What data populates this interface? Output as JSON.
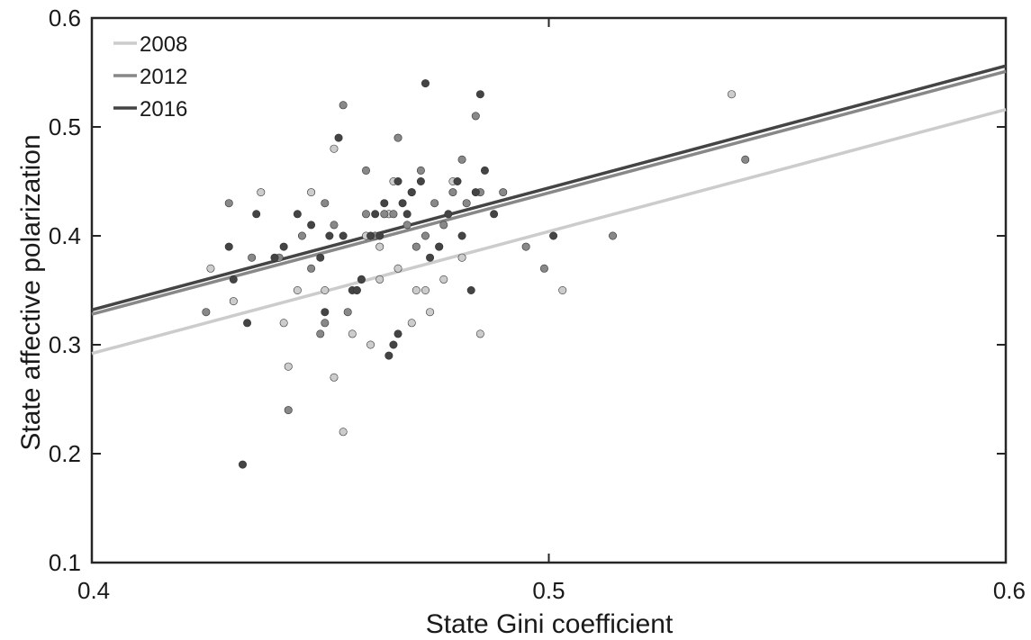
{
  "chart_data": {
    "type": "scatter",
    "title": "",
    "xlabel": "State Gini coefficient",
    "ylabel": "State affective polarization",
    "xlim": [
      0.4,
      0.6
    ],
    "ylim": [
      0.1,
      0.6
    ],
    "xticks": [
      0.4,
      0.5,
      0.6
    ],
    "yticks": [
      0.1,
      0.2,
      0.3,
      0.4,
      0.5,
      0.6
    ],
    "grid": false,
    "legend_position": "top-left",
    "series": [
      {
        "name": "2008",
        "color": "#cccccc",
        "fit_line": [
          [
            0.4,
            0.292
          ],
          [
            0.6,
            0.516
          ]
        ],
        "points": [
          [
            0.426,
            0.37
          ],
          [
            0.431,
            0.34
          ],
          [
            0.437,
            0.44
          ],
          [
            0.442,
            0.32
          ],
          [
            0.443,
            0.28
          ],
          [
            0.445,
            0.35
          ],
          [
            0.448,
            0.44
          ],
          [
            0.451,
            0.35
          ],
          [
            0.453,
            0.27
          ],
          [
            0.453,
            0.48
          ],
          [
            0.455,
            0.22
          ],
          [
            0.457,
            0.31
          ],
          [
            0.459,
            0.36
          ],
          [
            0.46,
            0.4
          ],
          [
            0.461,
            0.3
          ],
          [
            0.463,
            0.36
          ],
          [
            0.463,
            0.39
          ],
          [
            0.465,
            0.42
          ],
          [
            0.466,
            0.45
          ],
          [
            0.467,
            0.37
          ],
          [
            0.47,
            0.32
          ],
          [
            0.471,
            0.35
          ],
          [
            0.473,
            0.35
          ],
          [
            0.474,
            0.33
          ],
          [
            0.477,
            0.36
          ],
          [
            0.479,
            0.45
          ],
          [
            0.481,
            0.38
          ],
          [
            0.485,
            0.31
          ],
          [
            0.503,
            0.35
          ],
          [
            0.54,
            0.53
          ]
        ]
      },
      {
        "name": "2012",
        "color": "#888888",
        "fit_line": [
          [
            0.4,
            0.328
          ],
          [
            0.6,
            0.551
          ]
        ],
        "points": [
          [
            0.425,
            0.33
          ],
          [
            0.43,
            0.43
          ],
          [
            0.435,
            0.38
          ],
          [
            0.441,
            0.38
          ],
          [
            0.443,
            0.24
          ],
          [
            0.446,
            0.4
          ],
          [
            0.448,
            0.37
          ],
          [
            0.45,
            0.31
          ],
          [
            0.451,
            0.43
          ],
          [
            0.451,
            0.32
          ],
          [
            0.453,
            0.41
          ],
          [
            0.455,
            0.52
          ],
          [
            0.456,
            0.33
          ],
          [
            0.458,
            0.35
          ],
          [
            0.46,
            0.42
          ],
          [
            0.46,
            0.46
          ],
          [
            0.462,
            0.4
          ],
          [
            0.464,
            0.42
          ],
          [
            0.466,
            0.42
          ],
          [
            0.467,
            0.49
          ],
          [
            0.469,
            0.41
          ],
          [
            0.47,
            0.44
          ],
          [
            0.471,
            0.39
          ],
          [
            0.472,
            0.46
          ],
          [
            0.473,
            0.4
          ],
          [
            0.475,
            0.43
          ],
          [
            0.476,
            0.39
          ],
          [
            0.477,
            0.41
          ],
          [
            0.479,
            0.44
          ],
          [
            0.481,
            0.47
          ],
          [
            0.482,
            0.43
          ],
          [
            0.484,
            0.51
          ],
          [
            0.485,
            0.44
          ],
          [
            0.49,
            0.44
          ],
          [
            0.495,
            0.39
          ],
          [
            0.499,
            0.37
          ],
          [
            0.514,
            0.4
          ],
          [
            0.543,
            0.47
          ]
        ]
      },
      {
        "name": "2016",
        "color": "#444444",
        "fit_line": [
          [
            0.4,
            0.332
          ],
          [
            0.6,
            0.556
          ]
        ],
        "points": [
          [
            0.43,
            0.39
          ],
          [
            0.431,
            0.36
          ],
          [
            0.433,
            0.19
          ],
          [
            0.434,
            0.32
          ],
          [
            0.436,
            0.42
          ],
          [
            0.44,
            0.38
          ],
          [
            0.442,
            0.39
          ],
          [
            0.445,
            0.42
          ],
          [
            0.448,
            0.41
          ],
          [
            0.45,
            0.38
          ],
          [
            0.451,
            0.33
          ],
          [
            0.452,
            0.4
          ],
          [
            0.454,
            0.49
          ],
          [
            0.455,
            0.4
          ],
          [
            0.457,
            0.35
          ],
          [
            0.458,
            0.35
          ],
          [
            0.459,
            0.36
          ],
          [
            0.461,
            0.4
          ],
          [
            0.462,
            0.42
          ],
          [
            0.463,
            0.4
          ],
          [
            0.464,
            0.43
          ],
          [
            0.465,
            0.29
          ],
          [
            0.466,
            0.3
          ],
          [
            0.467,
            0.31
          ],
          [
            0.467,
            0.45
          ],
          [
            0.468,
            0.43
          ],
          [
            0.469,
            0.42
          ],
          [
            0.47,
            0.44
          ],
          [
            0.472,
            0.45
          ],
          [
            0.473,
            0.54
          ],
          [
            0.474,
            0.38
          ],
          [
            0.476,
            0.39
          ],
          [
            0.478,
            0.42
          ],
          [
            0.48,
            0.45
          ],
          [
            0.481,
            0.4
          ],
          [
            0.483,
            0.35
          ],
          [
            0.484,
            0.44
          ],
          [
            0.485,
            0.53
          ],
          [
            0.486,
            0.46
          ],
          [
            0.488,
            0.42
          ],
          [
            0.501,
            0.4
          ]
        ]
      }
    ]
  }
}
